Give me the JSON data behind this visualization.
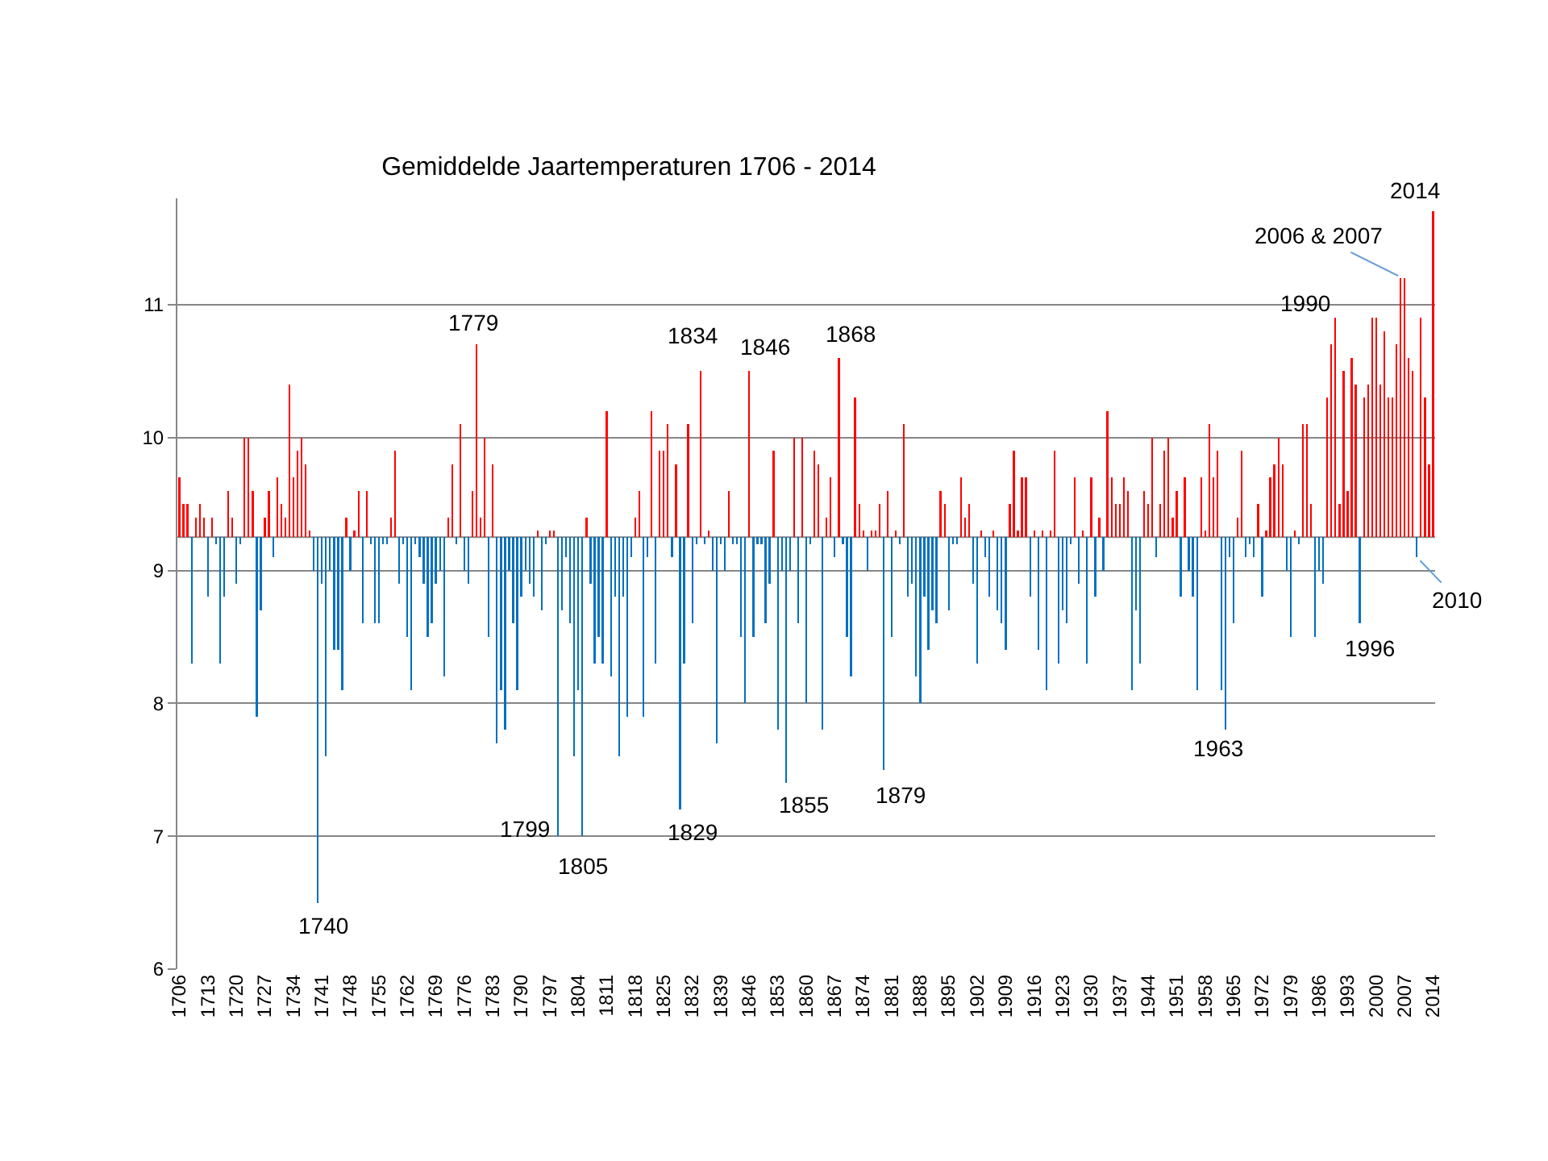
{
  "chart_data": {
    "type": "bar",
    "title": "Gemiddelde Jaartemperaturen 1706 - 2014",
    "x": [
      1706,
      1707,
      1708,
      1709,
      1710,
      1711,
      1712,
      1713,
      1714,
      1715,
      1716,
      1717,
      1718,
      1719,
      1720,
      1721,
      1722,
      1723,
      1724,
      1725,
      1726,
      1727,
      1728,
      1729,
      1730,
      1731,
      1732,
      1733,
      1734,
      1735,
      1736,
      1737,
      1738,
      1739,
      1740,
      1741,
      1742,
      1743,
      1744,
      1745,
      1746,
      1747,
      1748,
      1749,
      1750,
      1751,
      1752,
      1753,
      1754,
      1755,
      1756,
      1757,
      1758,
      1759,
      1760,
      1761,
      1762,
      1763,
      1764,
      1765,
      1766,
      1767,
      1768,
      1769,
      1770,
      1771,
      1772,
      1773,
      1774,
      1775,
      1776,
      1777,
      1778,
      1779,
      1780,
      1781,
      1782,
      1783,
      1784,
      1785,
      1786,
      1787,
      1788,
      1789,
      1790,
      1791,
      1792,
      1793,
      1794,
      1795,
      1796,
      1797,
      1798,
      1799,
      1800,
      1801,
      1802,
      1803,
      1804,
      1805,
      1806,
      1807,
      1808,
      1809,
      1810,
      1811,
      1812,
      1813,
      1814,
      1815,
      1816,
      1817,
      1818,
      1819,
      1820,
      1821,
      1822,
      1823,
      1824,
      1825,
      1826,
      1827,
      1828,
      1829,
      1830,
      1831,
      1832,
      1833,
      1834,
      1835,
      1836,
      1837,
      1838,
      1839,
      1840,
      1841,
      1842,
      1843,
      1844,
      1845,
      1846,
      1847,
      1848,
      1849,
      1850,
      1851,
      1852,
      1853,
      1854,
      1855,
      1856,
      1857,
      1858,
      1859,
      1860,
      1861,
      1862,
      1863,
      1864,
      1865,
      1866,
      1867,
      1868,
      1869,
      1870,
      1871,
      1872,
      1873,
      1874,
      1875,
      1876,
      1877,
      1878,
      1879,
      1880,
      1881,
      1882,
      1883,
      1884,
      1885,
      1886,
      1887,
      1888,
      1889,
      1890,
      1891,
      1892,
      1893,
      1894,
      1895,
      1896,
      1897,
      1898,
      1899,
      1900,
      1901,
      1902,
      1903,
      1904,
      1905,
      1906,
      1907,
      1908,
      1909,
      1910,
      1911,
      1912,
      1913,
      1914,
      1915,
      1916,
      1917,
      1918,
      1919,
      1920,
      1921,
      1922,
      1923,
      1924,
      1925,
      1926,
      1927,
      1928,
      1929,
      1930,
      1931,
      1932,
      1933,
      1934,
      1935,
      1936,
      1937,
      1938,
      1939,
      1940,
      1941,
      1942,
      1943,
      1944,
      1945,
      1946,
      1947,
      1948,
      1949,
      1950,
      1951,
      1952,
      1953,
      1954,
      1955,
      1956,
      1957,
      1958,
      1959,
      1960,
      1961,
      1962,
      1963,
      1964,
      1965,
      1966,
      1967,
      1968,
      1969,
      1970,
      1971,
      1972,
      1973,
      1974,
      1975,
      1976,
      1977,
      1978,
      1979,
      1980,
      1981,
      1982,
      1983,
      1984,
      1985,
      1986,
      1987,
      1988,
      1989,
      1990,
      1991,
      1992,
      1993,
      1994,
      1995,
      1996,
      1997,
      1998,
      1999,
      2000,
      2001,
      2002,
      2003,
      2004,
      2005,
      2006,
      2007,
      2008,
      2009,
      2010,
      2011,
      2012,
      2013,
      2014
    ],
    "base": [
      9.25,
      9.25,
      9.25,
      9.25,
      9.25,
      9.25,
      9.25,
      9.25,
      9.25,
      9.25,
      9.25,
      9.25,
      9.25,
      9.25,
      9.25,
      9.25,
      9.25,
      9.25,
      9.25,
      9.25,
      9.25,
      9.25,
      9.25,
      9.25,
      9.25,
      9.25,
      9.25,
      9.25,
      9.25,
      9.25,
      9.25,
      9.25,
      9.25,
      9.25,
      9.25,
      9.25,
      9.25,
      9.25,
      9.25,
      9.25,
      9.25,
      9.25,
      9.25,
      9.25,
      9.25,
      9.25,
      9.25,
      9.25,
      9.25,
      9.25,
      9.25,
      9.25,
      9.25,
      9.25,
      9.25,
      9.25,
      9.25,
      9.25,
      9.25,
      9.25,
      9.25,
      9.25,
      9.25,
      9.25,
      9.25,
      9.25,
      9.25,
      9.25,
      9.25,
      9.25,
      9.25,
      9.25,
      9.25,
      9.25,
      9.25,
      9.25,
      9.25,
      9.25,
      9.25,
      9.25,
      9.25,
      9.25,
      9.25,
      9.25,
      9.25,
      9.25,
      9.25,
      9.25,
      9.25,
      9.25,
      9.25,
      9.25,
      9.25,
      9.25,
      9.25,
      9.25,
      9.25,
      9.25,
      9.25,
      9.25,
      9.25,
      9.25,
      9.25,
      9.25,
      9.25,
      9.25,
      9.25,
      9.25,
      9.25,
      9.25,
      9.25,
      9.25,
      9.25,
      9.25,
      9.25,
      9.25,
      9.25,
      9.25,
      9.25,
      9.25,
      9.25,
      9.25,
      9.25,
      9.25,
      9.25,
      9.25,
      9.25,
      9.25,
      9.25,
      9.25,
      9.25,
      9.25,
      9.25,
      9.25,
      9.25,
      9.25,
      9.25,
      9.25,
      9.25,
      9.25,
      9.25,
      9.25,
      9.25,
      9.25,
      9.25,
      9.25,
      9.25,
      9.25,
      9.25,
      9.25,
      9.25,
      9.25,
      9.25,
      9.25,
      9.25,
      9.25,
      9.25,
      9.25,
      9.25,
      9.25,
      9.25,
      9.25,
      9.25,
      9.25,
      9.25,
      9.25,
      9.25,
      9.25,
      9.25,
      9.25,
      9.25,
      9.25,
      9.25,
      9.25,
      9.25,
      9.25,
      9.25,
      9.25,
      9.25,
      9.25,
      9.25,
      9.25,
      9.25,
      9.25,
      9.25,
      9.25,
      9.25,
      9.25,
      9.25,
      9.25,
      9.25,
      9.25,
      9.25,
      9.25,
      9.25,
      9.25,
      9.25,
      9.25,
      9.25,
      9.25,
      9.25,
      9.25,
      9.25,
      9.25,
      9.25,
      9.25,
      9.25,
      9.25,
      9.25,
      9.25,
      9.25,
      9.25,
      9.25,
      9.25,
      9.25,
      9.25,
      9.25,
      9.25,
      9.25,
      9.25,
      9.25,
      9.25,
      9.25,
      9.25,
      9.25,
      9.25,
      9.25,
      9.25,
      9.25,
      9.25,
      9.25,
      9.25,
      9.25,
      9.25,
      9.25,
      9.25,
      9.25,
      9.25,
      9.25,
      9.25,
      9.25,
      9.25,
      9.25,
      9.25,
      9.25,
      9.25,
      9.25,
      9.25,
      9.25,
      9.25,
      9.25,
      9.25,
      9.25,
      9.25,
      9.25,
      9.25,
      9.25,
      9.25,
      9.25,
      9.25,
      9.25,
      9.25,
      9.25,
      9.25,
      9.25,
      9.25,
      9.25,
      9.25,
      9.25,
      9.25,
      9.25,
      9.25,
      9.25,
      9.25,
      9.25,
      9.25,
      9.25,
      9.25,
      9.25,
      9.25,
      9.25,
      9.25,
      9.25,
      9.25,
      9.25,
      9.25,
      9.25,
      9.25,
      9.25,
      9.25,
      9.25,
      9.25,
      9.25,
      9.25,
      9.25,
      9.25,
      9.25,
      9.25,
      9.25,
      9.25,
      9.25,
      9.25,
      9.25,
      9.25,
      9.25,
      9.25,
      9.25,
      9.25,
      9.25
    ],
    "values": [
      0.45,
      0.25,
      0.25,
      -0.95,
      0.15,
      0.25,
      0.15,
      -0.45,
      0.15,
      -0.05,
      -0.95,
      -0.45,
      0.35,
      0.15,
      -0.35,
      -0.05,
      0.75,
      0.75,
      0.35,
      -1.35,
      -0.55,
      0.15,
      0.35,
      -0.15,
      0.45,
      0.25,
      0.15,
      1.15,
      0.45,
      0.65,
      0.75,
      0.55,
      0.05,
      -0.25,
      -2.75,
      -0.35,
      -1.65,
      -0.25,
      -0.85,
      -0.85,
      -1.15,
      0.15,
      -0.25,
      0.05,
      0.35,
      -0.65,
      0.35,
      -0.05,
      -0.65,
      -0.65,
      -0.05,
      -0.05,
      0.15,
      0.65,
      -0.35,
      -0.05,
      -0.75,
      -1.15,
      -0.05,
      -0.15,
      -0.35,
      -0.75,
      -0.65,
      -0.35,
      -0.25,
      -1.05,
      0.15,
      0.55,
      -0.05,
      0.85,
      -0.25,
      -0.35,
      0.35,
      1.45,
      0.15,
      0.75,
      -0.75,
      0.55,
      -1.55,
      -1.15,
      -1.45,
      -0.25,
      -0.65,
      -1.15,
      -0.45,
      -0.25,
      -0.35,
      -0.45,
      0.05,
      -0.55,
      -0.05,
      0.05,
      0.05,
      -2.25,
      -0.55,
      -0.15,
      -0.65,
      -1.65,
      -1.15,
      -2.25,
      0.15,
      -0.35,
      -0.95,
      -0.75,
      -0.95,
      0.95,
      -1.05,
      -0.45,
      -1.65,
      -0.45,
      -1.35,
      -0.15,
      0.15,
      0.35,
      -1.35,
      -0.15,
      0.95,
      -0.95,
      0.65,
      0.65,
      0.85,
      -0.15,
      0.55,
      -2.05,
      -0.95,
      0.85,
      -0.65,
      -0.05,
      1.25,
      -0.05,
      0.05,
      -0.25,
      -1.55,
      -0.05,
      -0.25,
      0.35,
      -0.05,
      -0.05,
      -0.75,
      -1.25,
      1.25,
      -0.75,
      -0.05,
      -0.05,
      -0.65,
      -0.35,
      0.65,
      -1.45,
      -0.25,
      -1.85,
      -0.25,
      0.75,
      -0.65,
      0.75,
      -1.25,
      -0.05,
      0.65,
      0.55,
      -1.45,
      0.15,
      0.45,
      -0.15,
      1.35,
      -0.05,
      -0.75,
      -1.05,
      1.05,
      0.25,
      0.05,
      -0.25,
      0.05,
      0.05,
      0.25,
      -1.75,
      0.35,
      -0.75,
      0.05,
      -0.05,
      0.85,
      -0.45,
      -0.35,
      -1.05,
      -1.25,
      -0.45,
      -0.85,
      -0.55,
      -0.65,
      0.35,
      0.25,
      -0.55,
      -0.05,
      -0.05,
      0.45,
      0.15,
      0.25,
      -0.35,
      -0.95,
      0.05,
      -0.15,
      -0.45,
      0.05,
      -0.55,
      -0.65,
      -0.85,
      0.25,
      0.65,
      0.05,
      0.45,
      0.45,
      -0.45,
      0.05,
      -0.85,
      0.05,
      -1.15,
      0.05,
      0.65,
      -0.95,
      -0.55,
      -0.65,
      -0.05,
      0.45,
      -0.35,
      0.05,
      -0.95,
      0.45,
      -0.45,
      0.15,
      -0.25,
      0.95,
      0.45,
      0.25,
      0.25,
      0.45,
      0.35,
      -1.15,
      -0.55,
      -0.95,
      0.35,
      0.25,
      0.75,
      -0.15,
      0.25,
      0.65,
      0.75,
      0.15,
      0.35,
      -0.45,
      0.45,
      -0.25,
      -0.45,
      -1.15,
      0.45,
      0.05,
      0.85,
      0.45,
      0.65,
      -1.15,
      -1.45,
      -0.15,
      -0.65,
      0.15,
      0.65,
      -0.15,
      -0.05,
      -0.15,
      0.25,
      -0.45,
      0.05,
      0.45,
      0.55,
      0.75,
      0.55,
      -0.25,
      -0.75,
      0.05,
      -0.05,
      0.85,
      0.85,
      0.25,
      -0.75,
      -0.25,
      -0.35,
      1.05,
      1.45,
      1.65,
      0.25,
      1.25,
      0.35,
      1.35,
      1.15,
      -0.65,
      1.05,
      1.15,
      1.65,
      1.65,
      1.15,
      1.55,
      1.05,
      1.05,
      1.45,
      1.95,
      1.95,
      1.35,
      1.25,
      -0.15,
      1.65,
      1.05,
      0.55,
      2.45
    ],
    "colors": [
      "#ff0000",
      "#ff0000",
      "#ff0000",
      "#0070c0",
      "#ff0000",
      "#ff0000",
      "#ff0000",
      "#0070c0",
      "#ff0000",
      "#0070c0",
      "#0070c0",
      "#0070c0",
      "#ff0000",
      "#ff0000",
      "#0070c0",
      "#0070c0",
      "#ff0000",
      "#ff0000",
      "#ff0000",
      "#0070c0",
      "#0070c0",
      "#ff0000",
      "#ff0000",
      "#0070c0",
      "#ff0000",
      "#ff0000",
      "#ff0000",
      "#ff0000",
      "#ff0000",
      "#ff0000",
      "#ff0000",
      "#ff0000",
      "#ff0000",
      "#0070c0",
      "#0070c0",
      "#0070c0",
      "#0070c0",
      "#0070c0",
      "#0070c0",
      "#0070c0",
      "#0070c0",
      "#ff0000",
      "#0070c0",
      "#ff0000",
      "#ff0000",
      "#0070c0",
      "#ff0000",
      "#0070c0",
      "#0070c0",
      "#0070c0",
      "#0070c0",
      "#0070c0",
      "#ff0000",
      "#ff0000",
      "#0070c0",
      "#0070c0",
      "#0070c0",
      "#0070c0",
      "#0070c0",
      "#0070c0",
      "#0070c0",
      "#0070c0",
      "#0070c0",
      "#0070c0",
      "#0070c0",
      "#0070c0",
      "#ff0000",
      "#ff0000",
      "#0070c0",
      "#ff0000",
      "#0070c0",
      "#0070c0",
      "#ff0000",
      "#ff0000",
      "#ff0000",
      "#ff0000",
      "#0070c0",
      "#ff0000",
      "#0070c0",
      "#0070c0",
      "#0070c0",
      "#0070c0",
      "#0070c0",
      "#0070c0",
      "#0070c0",
      "#0070c0",
      "#0070c0",
      "#0070c0",
      "#ff0000",
      "#0070c0",
      "#0070c0",
      "#ff0000",
      "#ff0000",
      "#0070c0",
      "#0070c0",
      "#0070c0",
      "#0070c0",
      "#0070c0",
      "#0070c0",
      "#0070c0",
      "#ff0000",
      "#0070c0",
      "#0070c0",
      "#0070c0",
      "#0070c0",
      "#ff0000",
      "#0070c0",
      "#0070c0",
      "#0070c0",
      "#0070c0",
      "#0070c0",
      "#0070c0",
      "#ff0000",
      "#ff0000",
      "#0070c0",
      "#0070c0",
      "#ff0000",
      "#0070c0",
      "#ff0000",
      "#ff0000",
      "#ff0000",
      "#0070c0",
      "#ff0000",
      "#0070c0",
      "#0070c0",
      "#ff0000",
      "#0070c0",
      "#0070c0",
      "#ff0000",
      "#0070c0",
      "#ff0000",
      "#0070c0",
      "#0070c0",
      "#0070c0",
      "#0070c0",
      "#ff0000",
      "#0070c0",
      "#0070c0",
      "#0070c0",
      "#0070c0",
      "#ff0000",
      "#0070c0",
      "#0070c0",
      "#0070c0",
      "#0070c0",
      "#0070c0",
      "#ff0000",
      "#0070c0",
      "#0070c0",
      "#0070c0",
      "#0070c0",
      "#ff0000",
      "#0070c0",
      "#ff0000",
      "#0070c0",
      "#0070c0",
      "#ff0000",
      "#ff0000",
      "#0070c0",
      "#ff0000",
      "#ff0000",
      "#0070c0",
      "#ff0000",
      "#0070c0",
      "#0070c0",
      "#0070c0",
      "#ff0000",
      "#ff0000",
      "#ff0000",
      "#0070c0",
      "#ff0000",
      "#ff0000",
      "#ff0000",
      "#0070c0",
      "#ff0000",
      "#0070c0",
      "#ff0000",
      "#0070c0",
      "#ff0000",
      "#0070c0",
      "#0070c0",
      "#0070c0",
      "#0070c0",
      "#0070c0",
      "#0070c0",
      "#0070c0",
      "#0070c0",
      "#ff0000",
      "#ff0000",
      "#0070c0",
      "#0070c0",
      "#0070c0",
      "#ff0000",
      "#ff0000",
      "#ff0000",
      "#0070c0",
      "#0070c0",
      "#ff0000",
      "#0070c0",
      "#0070c0",
      "#ff0000",
      "#0070c0",
      "#0070c0",
      "#0070c0",
      "#ff0000",
      "#ff0000",
      "#ff0000",
      "#ff0000",
      "#ff0000",
      "#0070c0",
      "#ff0000",
      "#0070c0",
      "#ff0000",
      "#0070c0",
      "#ff0000",
      "#ff0000",
      "#0070c0",
      "#0070c0",
      "#0070c0",
      "#0070c0",
      "#ff0000",
      "#0070c0",
      "#ff0000",
      "#0070c0",
      "#ff0000",
      "#0070c0",
      "#ff0000",
      "#0070c0",
      "#ff0000",
      "#ff0000",
      "#ff0000",
      "#ff0000",
      "#ff0000",
      "#ff0000",
      "#0070c0",
      "#0070c0",
      "#0070c0",
      "#ff0000",
      "#ff0000",
      "#ff0000",
      "#0070c0",
      "#ff0000",
      "#ff0000",
      "#ff0000",
      "#ff0000",
      "#ff0000",
      "#0070c0",
      "#ff0000",
      "#0070c0",
      "#0070c0",
      "#0070c0",
      "#ff0000",
      "#ff0000",
      "#ff0000",
      "#ff0000",
      "#ff0000",
      "#0070c0",
      "#0070c0",
      "#0070c0",
      "#0070c0",
      "#ff0000",
      "#ff0000",
      "#0070c0",
      "#0070c0",
      "#0070c0",
      "#ff0000",
      "#0070c0",
      "#ff0000",
      "#ff0000",
      "#ff0000",
      "#ff0000",
      "#ff0000",
      "#0070c0",
      "#0070c0",
      "#ff0000",
      "#0070c0",
      "#ff0000",
      "#ff0000",
      "#ff0000",
      "#0070c0",
      "#0070c0",
      "#0070c0",
      "#ff0000",
      "#ff0000",
      "#ff0000",
      "#ff0000",
      "#ff0000",
      "#ff0000",
      "#ff0000",
      "#ff0000",
      "#0070c0",
      "#ff0000",
      "#ff0000",
      "#ff0000",
      "#ff0000",
      "#ff0000",
      "#ff0000",
      "#ff0000",
      "#ff0000",
      "#ff0000",
      "#ff0000",
      "#ff0000",
      "#ff0000",
      "#ff0000",
      "#0070c0",
      "#ff0000",
      "#ff0000",
      "#ff0000",
      "#ff0000"
    ],
    "xlim": [
      1705.5,
      2014.5
    ],
    "ylim": [
      6,
      11.8
    ],
    "xticks": [
      1706,
      1713,
      1720,
      1727,
      1734,
      1741,
      1748,
      1755,
      1762,
      1769,
      1776,
      1783,
      1790,
      1797,
      1804,
      1811,
      1818,
      1825,
      1832,
      1839,
      1846,
      1853,
      1860,
      1867,
      1874,
      1881,
      1888,
      1895,
      1902,
      1909,
      1916,
      1923,
      1930,
      1937,
      1944,
      1951,
      1958,
      1965,
      1972,
      1979,
      1986,
      1993,
      2000,
      2007,
      2014
    ],
    "yticks": [
      6,
      7,
      8,
      9,
      10,
      11
    ],
    "grid": "y",
    "ref_lines": [
      {
        "axis": "y",
        "value": 9.25,
        "color": "#868686"
      }
    ],
    "annotations": [
      {
        "text": "1740",
        "x": 1740,
        "y": 6.5
      },
      {
        "text": "1779",
        "x": 1779,
        "y": 10.7
      },
      {
        "text": "1799",
        "x": 1799,
        "y": 7.0
      },
      {
        "text": "1805",
        "x": 1805,
        "y": 7.0
      },
      {
        "text": "1829",
        "x": 1829,
        "y": 7.2
      },
      {
        "text": "1834",
        "x": 1834,
        "y": 10.5
      },
      {
        "text": "1846",
        "x": 1846,
        "y": 10.5
      },
      {
        "text": "1855",
        "x": 1855,
        "y": 7.4
      },
      {
        "text": "1868",
        "x": 1868,
        "y": 10.6
      },
      {
        "text": "1879",
        "x": 1879,
        "y": 7.5
      },
      {
        "text": "1963",
        "x": 1963,
        "y": 7.8
      },
      {
        "text": "1990",
        "x": 1990,
        "y": 10.9
      },
      {
        "text": "1996",
        "x": 1996,
        "y": 8.6
      },
      {
        "text": "2006 & 2007",
        "x": 2006.5,
        "y": 11.2
      },
      {
        "text": "2010",
        "x": 2010,
        "y": 9.1
      },
      {
        "text": "2014",
        "x": 2014,
        "y": 11.7
      }
    ]
  }
}
